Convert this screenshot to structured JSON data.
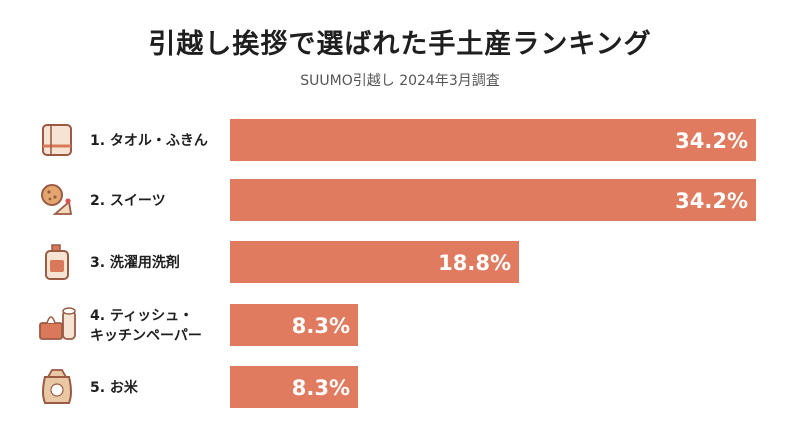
{
  "chart_data": {
    "type": "bar",
    "orientation": "horizontal",
    "title": "引越し挨拶で選ばれた手土産ランキング",
    "subtitle": "SUUMO引越し 2024年3月調査",
    "categories": [
      [
        "1. タオル・ふきん"
      ],
      [
        "2. スイーツ"
      ],
      [
        "3. 洗濯用洗剤"
      ],
      [
        "4. ティッシュ・",
        "キッチンペーパー"
      ],
      [
        "5. お米"
      ]
    ],
    "values": [
      34.2,
      34.2,
      18.8,
      8.3,
      8.3
    ],
    "value_labels": [
      "34.2%",
      "34.2%",
      "18.8%",
      "8.3%",
      "8.3%"
    ],
    "icons": [
      "towel-icon",
      "sweets-icon",
      "detergent-icon",
      "tissue-icon",
      "rice-bag-icon"
    ],
    "xlim": [
      0,
      34.2
    ],
    "grid": false,
    "legend": "none",
    "bar_color": "#e07b5f"
  }
}
